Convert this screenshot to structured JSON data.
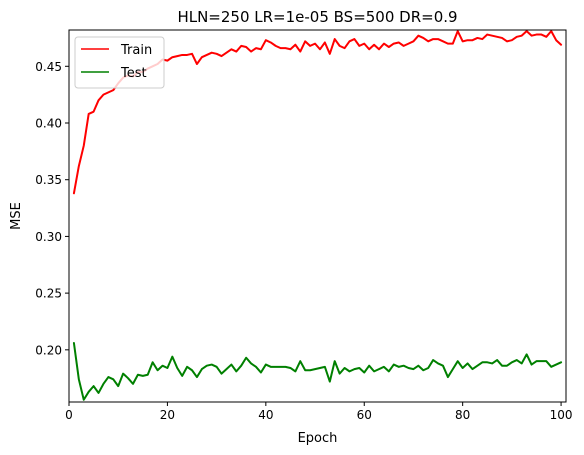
{
  "chart_data": {
    "type": "line",
    "title": "HLN=250 LR=1e-05 BS=500 DR=0.9",
    "xlabel": "Epoch",
    "ylabel": "MSE",
    "xlim": [
      0,
      101
    ],
    "ylim": [
      0.154,
      0.482
    ],
    "x_ticks": [
      0,
      20,
      40,
      60,
      80,
      100
    ],
    "y_ticks": [
      0.2,
      0.25,
      0.3,
      0.35,
      0.4,
      0.45
    ],
    "x_tick_labels": [
      "0",
      "20",
      "40",
      "60",
      "80",
      "100"
    ],
    "y_tick_labels": [
      "0.20",
      "0.25",
      "0.30",
      "0.35",
      "0.40",
      "0.45"
    ],
    "grid": false,
    "legend": "top-left",
    "x": [
      1,
      2,
      3,
      4,
      5,
      6,
      7,
      8,
      9,
      10,
      11,
      12,
      13,
      14,
      15,
      16,
      17,
      18,
      19,
      20,
      21,
      22,
      23,
      24,
      25,
      26,
      27,
      28,
      29,
      30,
      31,
      32,
      33,
      34,
      35,
      36,
      37,
      38,
      39,
      40,
      41,
      42,
      43,
      44,
      45,
      46,
      47,
      48,
      49,
      50,
      51,
      52,
      53,
      54,
      55,
      56,
      57,
      58,
      59,
      60,
      61,
      62,
      63,
      64,
      65,
      66,
      67,
      68,
      69,
      70,
      71,
      72,
      73,
      74,
      75,
      76,
      77,
      78,
      79,
      80,
      81,
      82,
      83,
      84,
      85,
      86,
      87,
      88,
      89,
      90,
      91,
      92,
      93,
      94,
      95,
      96,
      97,
      98,
      99,
      100
    ],
    "series": [
      {
        "name": "Train",
        "color": "#ff0000",
        "values": [
          0.338,
          0.362,
          0.38,
          0.408,
          0.41,
          0.42,
          0.425,
          0.427,
          0.429,
          0.435,
          0.44,
          0.442,
          0.441,
          0.445,
          0.445,
          0.448,
          0.45,
          0.452,
          0.456,
          0.455,
          0.458,
          0.459,
          0.46,
          0.46,
          0.461,
          0.452,
          0.458,
          0.46,
          0.462,
          0.461,
          0.459,
          0.462,
          0.465,
          0.463,
          0.468,
          0.467,
          0.463,
          0.466,
          0.465,
          0.473,
          0.471,
          0.468,
          0.466,
          0.466,
          0.465,
          0.469,
          0.463,
          0.472,
          0.468,
          0.47,
          0.465,
          0.471,
          0.461,
          0.474,
          0.468,
          0.466,
          0.472,
          0.474,
          0.468,
          0.47,
          0.465,
          0.469,
          0.465,
          0.47,
          0.467,
          0.47,
          0.471,
          0.468,
          0.47,
          0.472,
          0.477,
          0.475,
          0.472,
          0.474,
          0.474,
          0.472,
          0.47,
          0.47,
          0.481,
          0.472,
          0.473,
          0.473,
          0.475,
          0.474,
          0.478,
          0.477,
          0.476,
          0.475,
          0.472,
          0.473,
          0.476,
          0.477,
          0.481,
          0.477,
          0.478,
          0.478,
          0.476,
          0.481,
          0.473,
          0.469
        ]
      },
      {
        "name": "Test",
        "color": "#008000",
        "values": [
          0.206,
          0.174,
          0.156,
          0.163,
          0.168,
          0.162,
          0.17,
          0.176,
          0.174,
          0.168,
          0.179,
          0.175,
          0.17,
          0.178,
          0.177,
          0.178,
          0.189,
          0.182,
          0.186,
          0.184,
          0.194,
          0.184,
          0.177,
          0.185,
          0.182,
          0.176,
          0.183,
          0.186,
          0.187,
          0.185,
          0.179,
          0.183,
          0.187,
          0.181,
          0.186,
          0.193,
          0.188,
          0.185,
          0.18,
          0.187,
          0.185,
          0.185,
          0.185,
          0.185,
          0.184,
          0.181,
          0.19,
          0.182,
          0.182,
          0.183,
          0.184,
          0.185,
          0.172,
          0.19,
          0.179,
          0.184,
          0.181,
          0.183,
          0.184,
          0.18,
          0.186,
          0.181,
          0.183,
          0.185,
          0.181,
          0.187,
          0.185,
          0.186,
          0.184,
          0.183,
          0.186,
          0.182,
          0.184,
          0.191,
          0.188,
          0.186,
          0.176,
          0.183,
          0.19,
          0.184,
          0.188,
          0.183,
          0.186,
          0.189,
          0.189,
          0.188,
          0.191,
          0.186,
          0.186,
          0.189,
          0.191,
          0.188,
          0.196,
          0.187,
          0.19,
          0.19,
          0.19,
          0.185,
          0.187,
          0.189
        ]
      }
    ]
  }
}
